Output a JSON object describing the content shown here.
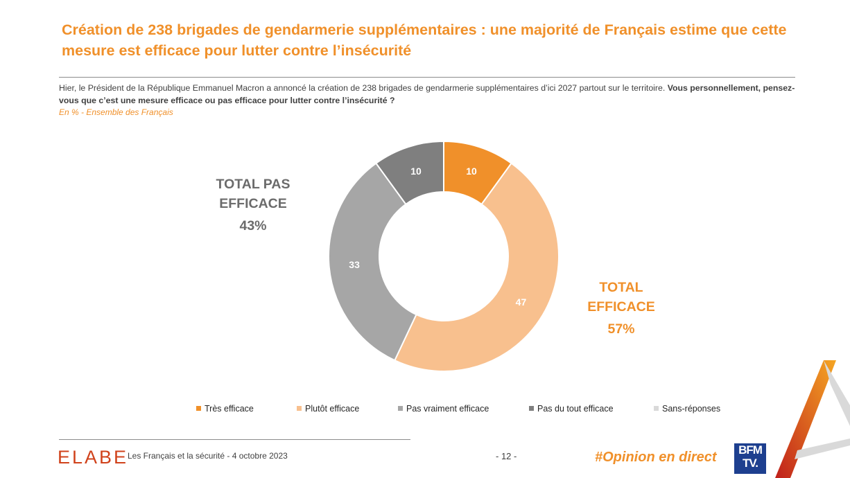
{
  "header": {
    "title": "Création de 238 brigades de gendarmerie supplémentaires : une majorité de Français estime que cette mesure est efficace pour lutter contre l’insécurité",
    "question_plain": "Hier, le Président de la République Emmanuel Macron a annoncé la création de 238 brigades de gendarmerie supplémentaires d’ici 2027 partout sur le territoire.",
    "question_bold": "Vous personnellement, pensez-vous que c’est une mesure efficace ou pas efficace pour lutter contre l’insécurité ?",
    "subtitle": "En % - Ensemble des Français"
  },
  "totals": {
    "negative_label_1": "TOTAL PAS",
    "negative_label_2": "EFFICACE",
    "negative_value": "43%",
    "positive_label_1": "TOTAL",
    "positive_label_2": "EFFICACE",
    "positive_value": "57%"
  },
  "chart_data": {
    "type": "pie",
    "variant": "donut",
    "series": [
      {
        "name": "Très efficace",
        "value": 10,
        "color": "#F0902A"
      },
      {
        "name": "Plutôt efficace",
        "value": 47,
        "color": "#F8C08E"
      },
      {
        "name": "Pas vraiment efficace",
        "value": 33,
        "color": "#A6A6A6"
      },
      {
        "name": "Pas du tout efficace",
        "value": 10,
        "color": "#7F7F7F"
      },
      {
        "name": "Sans-réponses",
        "value": 0,
        "color": "#D9D9D9"
      }
    ],
    "unit": "%"
  },
  "footer": {
    "brand": "ELABE",
    "study": "Les Français et la sécurité - 4 octobre 2023",
    "page": "- 12 -",
    "hashtag": "#Opinion en direct",
    "partner_line1": "BFM",
    "partner_line2": "TV."
  }
}
